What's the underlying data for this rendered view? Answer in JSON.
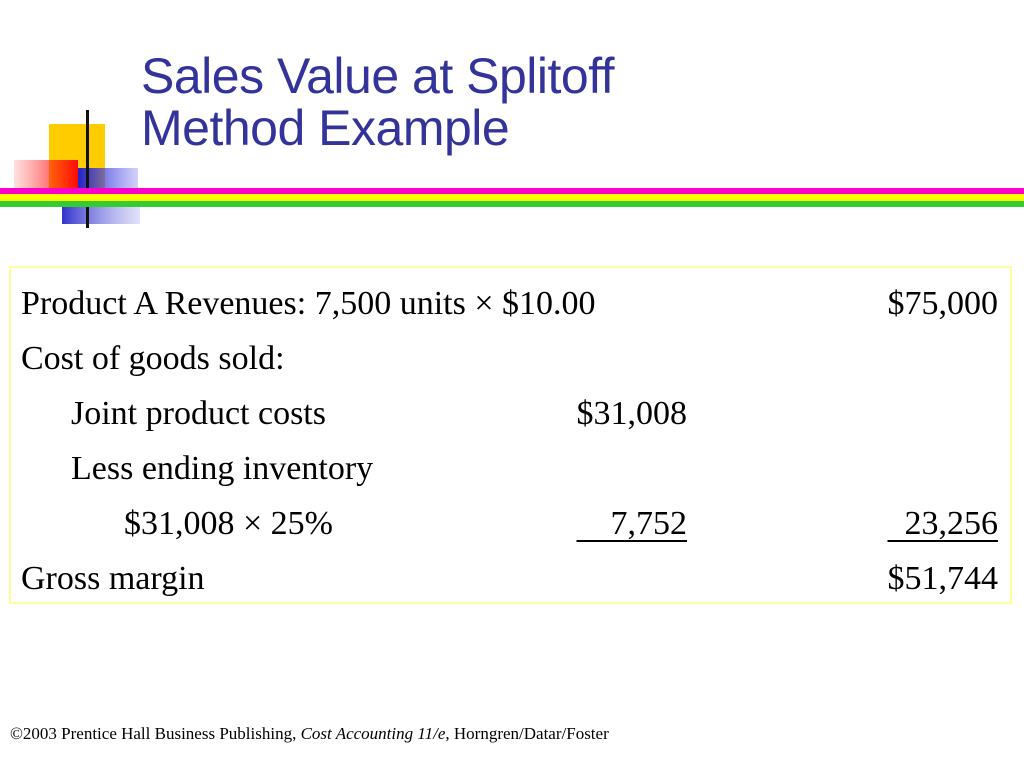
{
  "slide": {
    "title_line1": "Sales Value at Splitoff",
    "title_line2": "Method Example"
  },
  "table": {
    "rows": [
      {
        "label": "Product A Revenues: 7,500 units × $10.00",
        "col1": "",
        "col2": "$75,000"
      },
      {
        "label": "Cost of goods sold:",
        "col1": "",
        "col2": ""
      },
      {
        "label": "Joint product costs",
        "col1": "$31,008",
        "col2": ""
      },
      {
        "label": "Less ending inventory",
        "col1": "",
        "col2": ""
      },
      {
        "label": "$31,008 × 25%",
        "col1": "    7,752",
        "col2": "  23,256"
      },
      {
        "label": "Gross margin",
        "col1": "",
        "col2": "$51,744"
      }
    ]
  },
  "footer": {
    "prefix": "©2003 Prentice Hall Business Publishing, ",
    "book": "Cost Accounting 11/e,",
    "authors": " Horngren/Datar/Foster"
  },
  "colors": {
    "title": "#333399",
    "stripe_magenta": "#ff00cc",
    "stripe_yellow": "#ffff00",
    "stripe_green": "#33cc33",
    "box_border": "#ffff99"
  }
}
